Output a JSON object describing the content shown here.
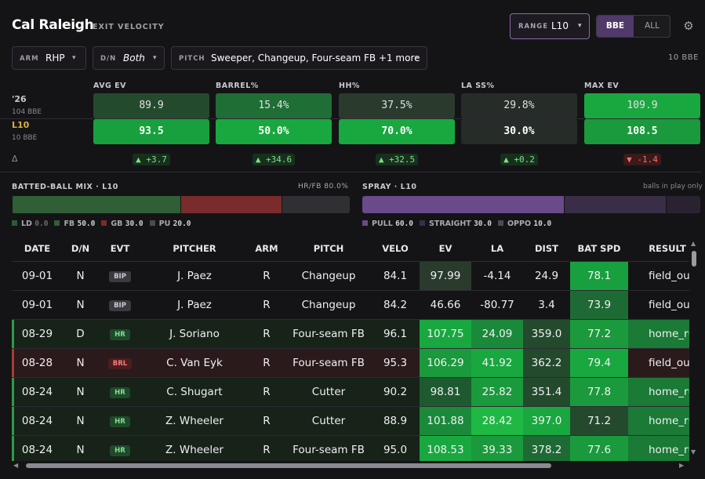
{
  "header": {
    "player_name": "Cal Raleigh",
    "subtitle": "EXIT VELOCITY",
    "range_label": "RANGE",
    "range_value": "L10",
    "toggle": [
      "BBE",
      "ALL"
    ],
    "toggle_selected": "BBE",
    "settings_icon": "gear-icon"
  },
  "filters": {
    "arm_label": "ARM",
    "arm_value": "RHP",
    "dn_label": "D/N",
    "dn_value": "Both",
    "pitch_label": "PITCH",
    "pitch_value": "Sweeper, Changeup, Four-seam FB +1 more",
    "bbe_count": "10 BBE"
  },
  "summary": {
    "rows": [
      {
        "label": "'26",
        "sub": "104 BBE"
      },
      {
        "label": "L10",
        "sub": "10 BBE"
      }
    ],
    "delta_label": "Δ",
    "metrics": [
      {
        "name": "AVG EV",
        "season": "89.9",
        "recent": "93.5",
        "delta": "▲ +3.7",
        "dir": "up",
        "season_bg": "#244a2e",
        "recent_bg": "#18a03e"
      },
      {
        "name": "BARREL%",
        "season": "15.4%",
        "recent": "50.0%",
        "delta": "▲ +34.6",
        "dir": "up",
        "season_bg": "#1f6e35",
        "recent_bg": "#18a83f"
      },
      {
        "name": "HH%",
        "season": "37.5%",
        "recent": "70.0%",
        "delta": "▲ +32.5",
        "dir": "up",
        "season_bg": "#2a3b2d",
        "recent_bg": "#18a83f"
      },
      {
        "name": "LA SS%",
        "season": "29.8%",
        "recent": "30.0%",
        "delta": "▲ +0.2",
        "dir": "up",
        "season_bg": "#262c28",
        "recent_bg": "#262c28"
      },
      {
        "name": "MAX EV",
        "season": "109.9",
        "recent": "108.5",
        "delta": "▼ -1.4",
        "dir": "down",
        "season_bg": "#18a83f",
        "recent_bg": "#1a9a3c"
      }
    ]
  },
  "batted_ball": {
    "title": "BATTED-BALL MIX · L10",
    "hrfb": "HR/FB 80.0%",
    "segments": [
      {
        "label": "LD",
        "value": "0.0",
        "pct": 0,
        "color": "#2b5a34"
      },
      {
        "label": "FB",
        "value": "50.0",
        "pct": 50,
        "color": "#2f5e37"
      },
      {
        "label": "GB",
        "value": "30.0",
        "pct": 30,
        "color": "#7a2b2b"
      },
      {
        "label": "PU",
        "value": "20.0",
        "pct": 20,
        "color": "#303034"
      }
    ]
  },
  "spray": {
    "title": "SPRAY · L10",
    "note": "balls in play only",
    "segments": [
      {
        "label": "PULL",
        "value": "60.0",
        "pct": 60,
        "color": "#6a4a8a"
      },
      {
        "label": "STRAIGHT",
        "value": "30.0",
        "pct": 30,
        "color": "#3a2d48"
      },
      {
        "label": "OPPO",
        "value": "10.0",
        "pct": 10,
        "color": "#2a2230"
      }
    ]
  },
  "table": {
    "columns": [
      "DATE",
      "D/N",
      "EVT",
      "PITCHER",
      "ARM",
      "PITCH",
      "VELO",
      "EV",
      "LA",
      "DIST",
      "BAT SPD",
      "RESULT"
    ],
    "rows": [
      {
        "date": "09-01",
        "dn": "N",
        "evt": "BIP",
        "pitcher": "J. Paez",
        "arm": "R",
        "pitch": "Changeup",
        "velo": "84.1",
        "ev": "97.99",
        "la": "-4.14",
        "dist": "24.9",
        "batspd": "78.1",
        "result": "field_out",
        "row_bg": "#141416",
        "accent": "",
        "ev_bg": "#2a3b2d",
        "la_bg": "",
        "dist_bg": "",
        "bs_bg": "#18a03e",
        "res_bg": ""
      },
      {
        "date": "09-01",
        "dn": "N",
        "evt": "BIP",
        "pitcher": "J. Paez",
        "arm": "R",
        "pitch": "Changeup",
        "velo": "84.2",
        "ev": "46.66",
        "la": "-80.77",
        "dist": "3.4",
        "batspd": "73.9",
        "result": "field_out",
        "row_bg": "#141416",
        "accent": "",
        "ev_bg": "",
        "la_bg": "",
        "dist_bg": "",
        "bs_bg": "#1e6a34",
        "res_bg": ""
      },
      {
        "date": "08-29",
        "dn": "D",
        "evt": "HR",
        "pitcher": "J. Soriano",
        "arm": "R",
        "pitch": "Four-seam FB",
        "velo": "96.1",
        "ev": "107.75",
        "la": "24.09",
        "dist": "359.0",
        "batspd": "77.2",
        "result": "home_run",
        "row_bg": "#172219",
        "accent": "#2f9a48",
        "ev_bg": "#18a83f",
        "la_bg": "#1a8a3a",
        "dist_bg": "#244a2e",
        "bs_bg": "#1a9a3c",
        "res_bg": "#1a7a36"
      },
      {
        "date": "08-28",
        "dn": "N",
        "evt": "BRL",
        "pitcher": "C. Van Eyk",
        "arm": "R",
        "pitch": "Four-seam FB",
        "velo": "95.3",
        "ev": "106.29",
        "la": "41.92",
        "dist": "362.2",
        "batspd": "79.4",
        "result": "field_out",
        "row_bg": "#2a1a1c",
        "accent": "#a83a3a",
        "ev_bg": "#1a9a3c",
        "la_bg": "#18a83f",
        "dist_bg": "#244a2e",
        "bs_bg": "#18a83f",
        "res_bg": ""
      },
      {
        "date": "08-24",
        "dn": "N",
        "evt": "HR",
        "pitcher": "C. Shugart",
        "arm": "R",
        "pitch": "Cutter",
        "velo": "90.2",
        "ev": "98.81",
        "la": "25.82",
        "dist": "351.4",
        "batspd": "77.8",
        "result": "home_run",
        "row_bg": "#172219",
        "accent": "#2f9a48",
        "ev_bg": "#1e5a30",
        "la_bg": "#1a9a3c",
        "dist_bg": "#244a2e",
        "bs_bg": "#1a9a3c",
        "res_bg": "#1a7a36"
      },
      {
        "date": "08-24",
        "dn": "N",
        "evt": "HR",
        "pitcher": "Z. Wheeler",
        "arm": "R",
        "pitch": "Cutter",
        "velo": "88.9",
        "ev": "101.88",
        "la": "28.42",
        "dist": "397.0",
        "batspd": "71.2",
        "result": "home_run",
        "row_bg": "#172219",
        "accent": "#2f9a48",
        "ev_bg": "#1a8a3a",
        "la_bg": "#1fb843",
        "dist_bg": "#18a83f",
        "bs_bg": "#244a2e",
        "res_bg": "#1a7a36"
      },
      {
        "date": "08-24",
        "dn": "N",
        "evt": "HR",
        "pitcher": "Z. Wheeler",
        "arm": "R",
        "pitch": "Four-seam FB",
        "velo": "95.0",
        "ev": "108.53",
        "la": "39.33",
        "dist": "378.2",
        "batspd": "77.6",
        "result": "home_run",
        "row_bg": "#172219",
        "accent": "#2f9a48",
        "ev_bg": "#18a83f",
        "la_bg": "#1a9a3c",
        "dist_bg": "#1e6a34",
        "bs_bg": "#1a9a3c",
        "res_bg": "#1a7a36"
      }
    ]
  }
}
